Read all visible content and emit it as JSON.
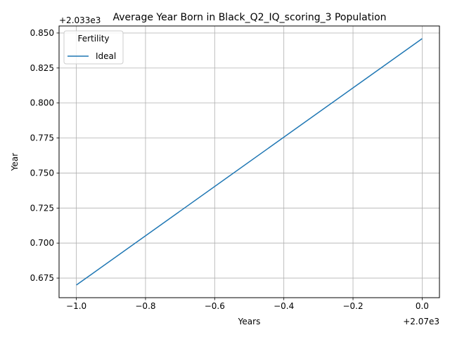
{
  "chart_data": {
    "type": "line",
    "title": "Average Year Born in Black_Q2_IQ_scoring_3 Population",
    "xlabel": "Years",
    "ylabel": "Year",
    "x_offset_label": "+2.07e3",
    "y_offset_label": "+2.033e3",
    "x_ticks": [
      -1.0,
      -0.8,
      -0.6,
      -0.4,
      -0.2,
      0.0
    ],
    "x_tick_labels": [
      "−1.0",
      "−0.8",
      "−0.6",
      "−0.4",
      "−0.2",
      "0.0"
    ],
    "y_ticks": [
      0.675,
      0.7,
      0.725,
      0.75,
      0.775,
      0.8,
      0.825,
      0.85
    ],
    "y_tick_labels": [
      "0.675",
      "0.700",
      "0.725",
      "0.750",
      "0.775",
      "0.800",
      "0.825",
      "0.850"
    ],
    "xlim": [
      -1.05,
      0.05
    ],
    "ylim": [
      0.661,
      0.855
    ],
    "grid": true,
    "legend_title": "Fertility",
    "legend_position": "upper-left",
    "series": [
      {
        "name": "Ideal",
        "color": "#1f77b4",
        "x": [
          -1.0,
          0.0
        ],
        "y": [
          0.67,
          0.846
        ]
      }
    ]
  }
}
